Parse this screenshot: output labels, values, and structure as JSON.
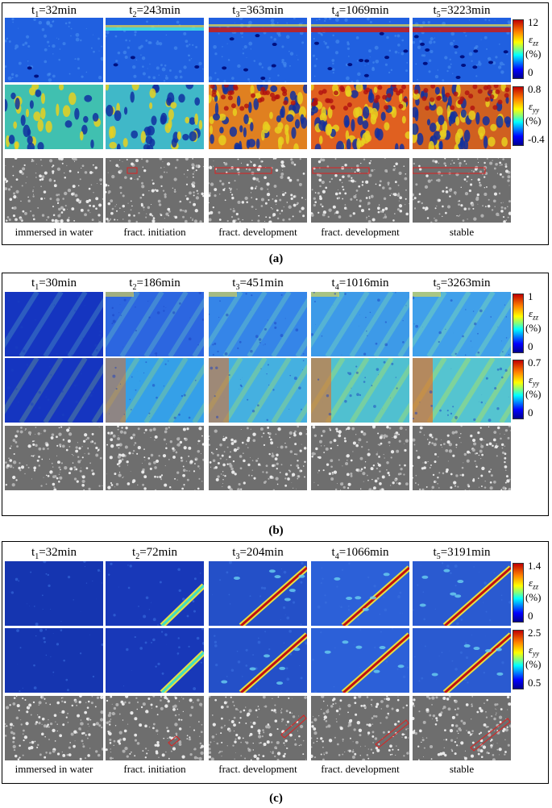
{
  "panels": [
    {
      "letter": "(a)",
      "times": [
        [
          "t",
          "1",
          "=32min"
        ],
        [
          "t",
          "2",
          "=243min"
        ],
        [
          "t",
          "3",
          "=363min"
        ],
        [
          "t",
          "4",
          "=1069min"
        ],
        [
          "t",
          "5",
          "=3223min"
        ]
      ],
      "zz_scale": {
        "max": "12",
        "min": "0",
        "symbol": "ε",
        "sub": "zz",
        "unit": "(%)"
      },
      "yy_scale": {
        "max": "0.8",
        "min": "-0.4",
        "symbol": "ε",
        "sub": "yy",
        "unit": "(%)"
      },
      "captions": [
        "immersed in water",
        "fract. initiation",
        "fract. development",
        "fract. development",
        "stable"
      ]
    },
    {
      "letter": "(b)",
      "times": [
        [
          "t",
          "1",
          "=30min"
        ],
        [
          "t",
          "2",
          "=186min"
        ],
        [
          "t",
          "3",
          "=451min"
        ],
        [
          "t",
          "4",
          "=1016min"
        ],
        [
          "t",
          "5",
          "=3263min"
        ]
      ],
      "zz_scale": {
        "max": "1",
        "min": "0",
        "symbol": "ε",
        "sub": "zz",
        "unit": "(%)"
      },
      "yy_scale": {
        "max": "0.7",
        "min": "0",
        "symbol": "ε",
        "sub": "yy",
        "unit": "(%)"
      },
      "captions": []
    },
    {
      "letter": "(c)",
      "times": [
        [
          "t",
          "1",
          "=32min"
        ],
        [
          "t",
          "2",
          "=72min"
        ],
        [
          "t",
          "3",
          "=204min"
        ],
        [
          "t",
          "4",
          "=1066min"
        ],
        [
          "t",
          "5",
          "=3191min"
        ]
      ],
      "zz_scale": {
        "max": "1.4",
        "min": "0",
        "symbol": "ε",
        "sub": "zz",
        "unit": "(%)"
      },
      "yy_scale": {
        "max": "2.5",
        "min": "0.5",
        "symbol": "ε",
        "sub": "yy",
        "unit": "(%)"
      },
      "captions": [
        "immersed in water",
        "fract. initiation",
        "fract. development",
        "fract. development",
        "stable"
      ]
    }
  ],
  "colors": {
    "jet_low": "#0000a0",
    "jet_high": "#c00000",
    "mark": "#e02020",
    "grey": "#707070"
  }
}
